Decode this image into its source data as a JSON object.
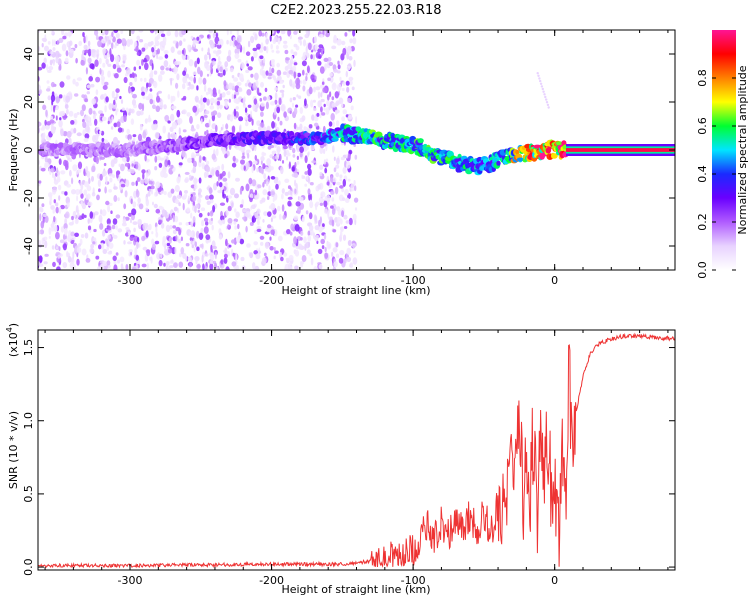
{
  "title": "C2E2.2023.255.22.03.R18",
  "chart_data": [
    {
      "type": "heatmap",
      "xlabel": "Height of straight line (km)",
      "ylabel": "Frequency (Hz)",
      "xlim": [
        -365,
        85
      ],
      "ylim": [
        -50,
        50
      ],
      "xticks": [
        -300,
        -200,
        -100,
        0
      ],
      "yticks": [
        -40,
        -20,
        0,
        20,
        40
      ],
      "grid": false,
      "colorbar": {
        "label": "Normalized spectral amplitude",
        "range": [
          0,
          1
        ],
        "ticks": [
          0.0,
          0.2,
          0.4,
          0.6,
          0.8
        ],
        "colormap": [
          "#ffffff",
          "#e8d2ff",
          "#b05cff",
          "#6a00ff",
          "#1a2aff",
          "#00e5ff",
          "#00ff30",
          "#ffff00",
          "#ff8000",
          "#ff0000",
          "#ff1493"
        ]
      },
      "ridge": {
        "x": [
          -360,
          -330,
          -300,
          -270,
          -240,
          -210,
          -180,
          -165,
          -150,
          -130,
          -110,
          -95,
          -80,
          -65,
          -55,
          -45,
          -35,
          -25,
          -15,
          -5,
          5,
          80
        ],
        "y": [
          0,
          0,
          0,
          2,
          4,
          5,
          5,
          5,
          7,
          5,
          3,
          1,
          -3,
          -6,
          -7,
          -6,
          -3,
          -2,
          -1,
          0,
          0,
          0
        ],
        "peak_amplitude": [
          0.2,
          0.2,
          0.2,
          0.25,
          0.3,
          0.35,
          0.4,
          0.45,
          0.55,
          0.6,
          0.55,
          0.6,
          0.6,
          0.55,
          0.5,
          0.5,
          0.6,
          0.8,
          0.9,
          0.95,
          1.0,
          1.0
        ]
      }
    },
    {
      "type": "line",
      "xlabel": "Height of straight line (km)",
      "ylabel": "SNR (10 * v/v)",
      "yscale_label": "(x10",
      "yscale_exp": "4",
      "yscale_close": ")",
      "xlim": [
        -365,
        85
      ],
      "ylim": [
        -0.02,
        1.62
      ],
      "xticks": [
        -300,
        -200,
        -100,
        0
      ],
      "yticks": [
        0.0,
        0.5,
        1.0,
        1.5
      ],
      "grid": false,
      "color": "#ee3333",
      "series": [
        {
          "x": [
            -365,
            -300,
            -200,
            -150,
            -130,
            -110,
            -100,
            -95,
            -90,
            -85,
            -80,
            -75,
            -70,
            -65,
            -60,
            -55,
            -50,
            -45,
            -40,
            -37,
            -35,
            -32,
            -30,
            -28,
            -25,
            -22,
            -20,
            -18,
            -15,
            -12,
            -10,
            -8,
            -5,
            -2,
            0,
            3,
            5,
            8,
            10,
            13,
            15,
            20,
            25,
            30,
            40,
            50,
            60,
            70,
            85
          ],
          "y": [
            0.01,
            0.01,
            0.02,
            0.02,
            0.04,
            0.06,
            0.12,
            0.2,
            0.28,
            0.2,
            0.3,
            0.22,
            0.35,
            0.28,
            0.34,
            0.25,
            0.38,
            0.22,
            0.45,
            0.35,
            0.7,
            0.4,
            0.85,
            0.55,
            1.15,
            0.45,
            0.9,
            0.35,
            0.95,
            0.3,
            1.12,
            0.5,
            0.95,
            0.4,
            0.6,
            0.25,
            0.9,
            0.35,
            1.3,
            0.8,
            1.05,
            1.3,
            1.45,
            1.52,
            1.56,
            1.58,
            1.58,
            1.57,
            1.56
          ]
        }
      ]
    }
  ]
}
